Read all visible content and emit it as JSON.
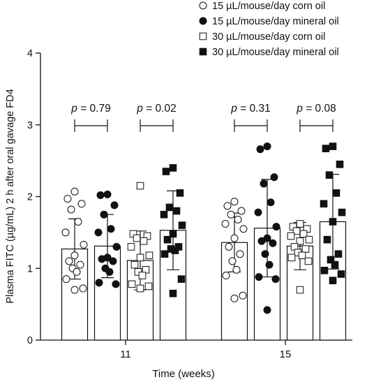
{
  "chart_data": {
    "type": "bar",
    "title": "",
    "xlabel": "Time (weeks)",
    "ylabel": "Plasma FITC (µg/mL) 2 h after oral gavage FD4",
    "ylim": [
      0,
      4
    ],
    "yticks": [
      "0",
      "1",
      "2",
      "3",
      "4"
    ],
    "categories": [
      "11",
      "15"
    ],
    "legend_position": "top-right",
    "error_bars": "mean ± SD",
    "series": [
      {
        "name": "15 µL/mouse/day corn oil",
        "marker": "circle-open",
        "values": [
          1.27,
          1.36
        ],
        "sd": [
          0.42,
          0.41
        ],
        "points": [
          [
            2.07,
            1.97,
            1.9,
            1.82,
            1.65,
            1.5,
            1.33,
            1.18,
            1.1,
            1.05,
            1.0,
            0.95,
            0.85,
            0.72,
            0.7
          ],
          [
            1.93,
            1.87,
            1.8,
            1.75,
            1.68,
            1.62,
            1.55,
            1.42,
            1.3,
            1.2,
            1.1,
            0.98,
            0.9,
            0.62,
            0.58
          ]
        ]
      },
      {
        "name": "15 µL/mouse/day mineral oil",
        "marker": "circle-filled",
        "values": [
          1.31,
          1.56
        ],
        "sd": [
          0.44,
          0.68
        ],
        "points": [
          [
            2.03,
            2.02,
            1.88,
            1.75,
            1.55,
            1.5,
            1.3,
            1.15,
            1.13,
            1.1,
            1.0,
            0.95,
            0.8,
            0.78
          ],
          [
            2.7,
            2.66,
            2.27,
            2.18,
            1.92,
            1.78,
            1.58,
            1.42,
            1.38,
            1.35,
            1.2,
            1.05,
            0.88,
            0.85,
            0.42
          ]
        ]
      },
      {
        "name": "30 µL/mouse/day corn oil",
        "marker": "square-open",
        "values": [
          1.11,
          1.31
        ],
        "sd": [
          0.41,
          0.33
        ],
        "points": [
          [
            2.15,
            1.48,
            1.45,
            1.42,
            1.38,
            1.3,
            1.18,
            1.15,
            1.05,
            0.98,
            0.95,
            0.9,
            0.78,
            0.75,
            0.72
          ],
          [
            1.62,
            1.58,
            1.55,
            1.52,
            1.48,
            1.45,
            1.4,
            1.38,
            1.3,
            1.27,
            1.22,
            1.18,
            1.15,
            1.1,
            0.7
          ]
        ]
      },
      {
        "name": "30 µL/mouse/day mineral oil",
        "marker": "square-filled",
        "values": [
          1.53,
          1.65
        ],
        "sd": [
          0.55,
          0.66
        ],
        "points": [
          [
            2.4,
            2.35,
            2.05,
            1.85,
            1.8,
            1.75,
            1.6,
            1.48,
            1.4,
            1.3,
            1.27,
            1.25,
            1.2,
            0.85,
            0.65
          ],
          [
            2.7,
            2.67,
            2.45,
            2.3,
            2.05,
            1.9,
            1.78,
            1.65,
            1.4,
            1.2,
            1.12,
            1.05,
            0.97,
            0.92,
            0.83
          ]
        ]
      }
    ],
    "annotations": [
      {
        "category": "11",
        "pair": [
          0,
          1
        ],
        "prefix": "p",
        "text": " = 0.79"
      },
      {
        "category": "11",
        "pair": [
          2,
          3
        ],
        "prefix": "p",
        "text": " = 0.02"
      },
      {
        "category": "15",
        "pair": [
          0,
          1
        ],
        "prefix": "p",
        "text": " = 0.31"
      },
      {
        "category": "15",
        "pair": [
          2,
          3
        ],
        "prefix": "p",
        "text": " = 0.08"
      }
    ]
  }
}
